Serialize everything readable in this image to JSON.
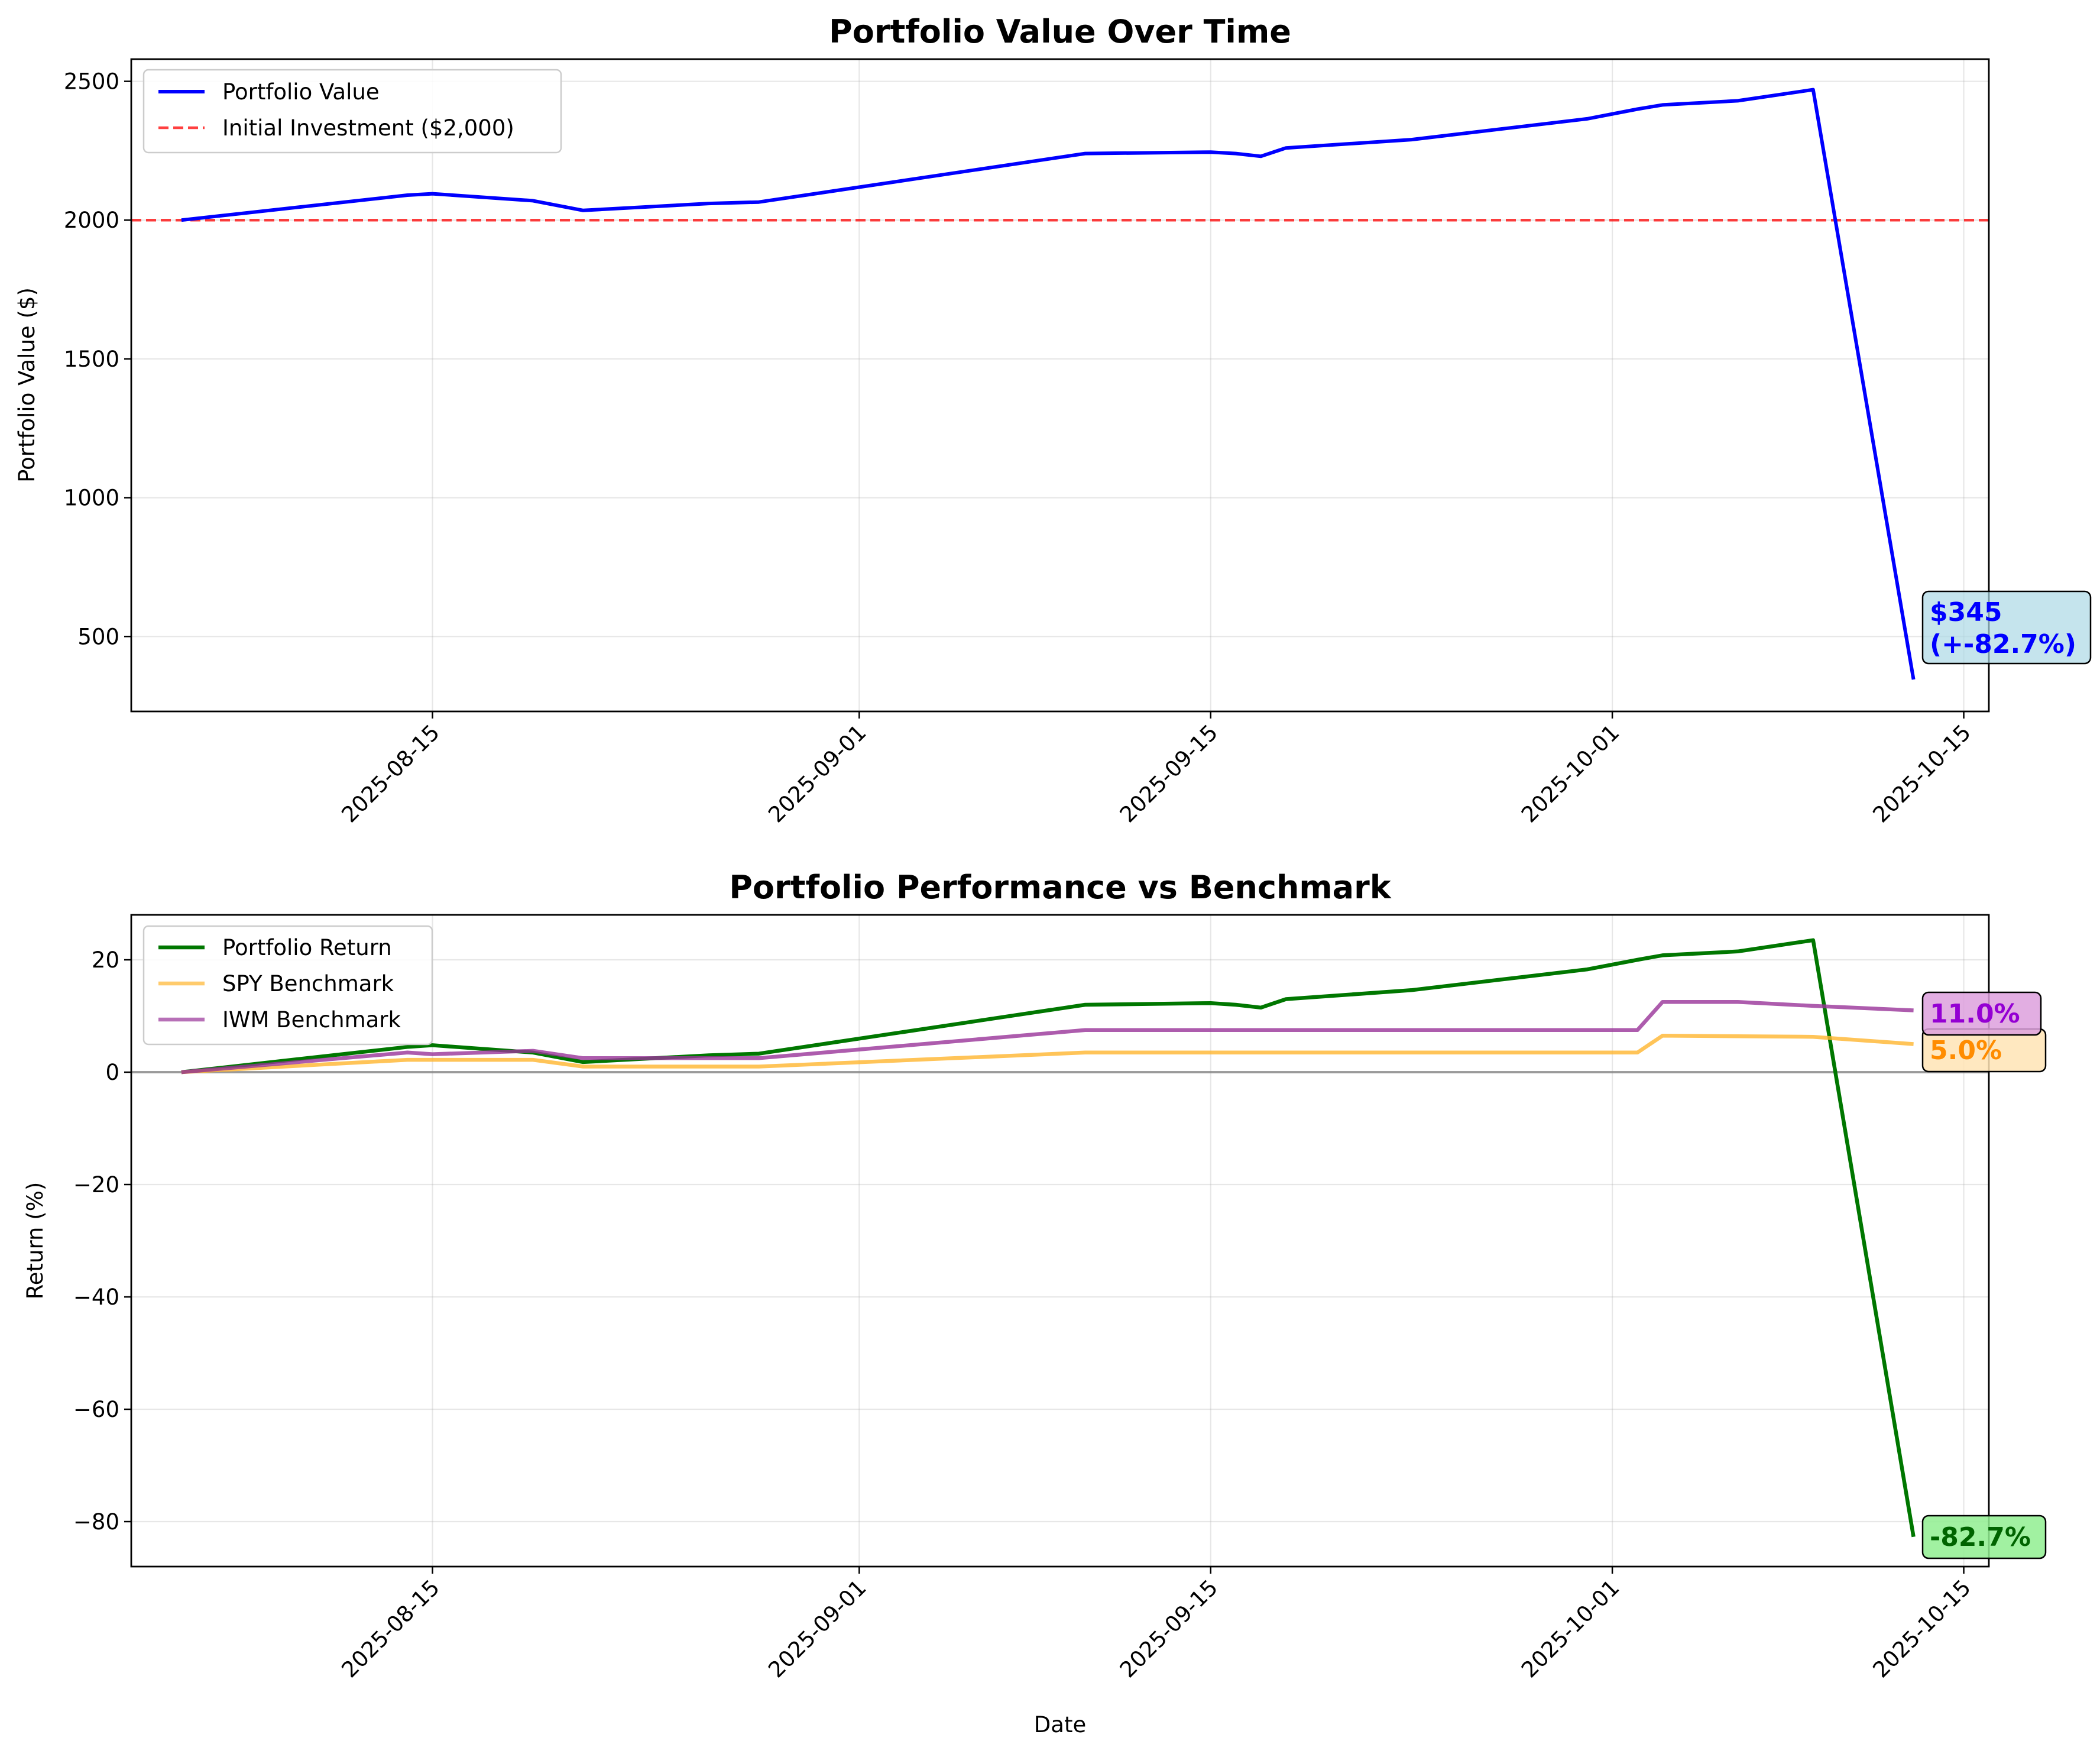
{
  "colors": {
    "portfolio_value": "#0000ff",
    "initial_line": "#ff0000",
    "portfolio_return": "#007700",
    "spy": "#ffb52e",
    "iwm": "#993399",
    "zero_line": "#808080"
  },
  "chart_data": [
    {
      "type": "line",
      "title": "Portfolio Value Over Time",
      "xlabel": "",
      "ylabel": "Portfolio Value ($)",
      "x_type": "date",
      "xlim": [
        "2025-08-03",
        "2025-10-16"
      ],
      "ylim": [
        230,
        2580
      ],
      "xticks": [
        "2025-08-15",
        "2025-09-01",
        "2025-09-15",
        "2025-10-01",
        "2025-10-15"
      ],
      "yticks": [
        500,
        1000,
        1500,
        2000,
        2500
      ],
      "grid": true,
      "legend_loc": "upper left",
      "series": [
        {
          "name": "Portfolio Value",
          "style": "solid",
          "points": [
            [
              "2025-08-05",
              2000
            ],
            [
              "2025-08-14",
              2090
            ],
            [
              "2025-08-15",
              2095
            ],
            [
              "2025-08-19",
              2070
            ],
            [
              "2025-08-21",
              2035
            ],
            [
              "2025-08-26",
              2060
            ],
            [
              "2025-08-28",
              2065
            ],
            [
              "2025-09-10",
              2240
            ],
            [
              "2025-09-15",
              2245
            ],
            [
              "2025-09-16",
              2240
            ],
            [
              "2025-09-17",
              2230
            ],
            [
              "2025-09-18",
              2260
            ],
            [
              "2025-09-23",
              2290
            ],
            [
              "2025-09-30",
              2365
            ],
            [
              "2025-10-02",
              2400
            ],
            [
              "2025-10-03",
              2415
            ],
            [
              "2025-10-06",
              2430
            ],
            [
              "2025-10-09",
              2470
            ],
            [
              "2025-10-13",
              345
            ]
          ]
        },
        {
          "name": "Initial Investment ($2,000)",
          "style": "dashed",
          "hline": 2000
        }
      ],
      "annotations": [
        {
          "text_line1": "$345",
          "text_line2": "(+-82.7%)",
          "x": "2025-10-13",
          "y": 345
        }
      ]
    },
    {
      "type": "line",
      "title": "Portfolio Performance vs Benchmark",
      "xlabel": "Date",
      "ylabel": "Return (%)",
      "x_type": "date",
      "xlim": [
        "2025-08-03",
        "2025-10-16"
      ],
      "ylim": [
        -88,
        28
      ],
      "xticks": [
        "2025-08-15",
        "2025-09-01",
        "2025-09-15",
        "2025-10-01",
        "2025-10-15"
      ],
      "yticks": [
        20,
        0,
        -20,
        -40,
        -60,
        -80
      ],
      "grid": true,
      "legend_loc": "upper left",
      "series": [
        {
          "name": "Portfolio Return",
          "points": [
            [
              "2025-08-05",
              0
            ],
            [
              "2025-08-14",
              4.5
            ],
            [
              "2025-08-15",
              4.8
            ],
            [
              "2025-08-19",
              3.5
            ],
            [
              "2025-08-21",
              1.8
            ],
            [
              "2025-08-26",
              3.0
            ],
            [
              "2025-08-28",
              3.3
            ],
            [
              "2025-09-10",
              12.0
            ],
            [
              "2025-09-15",
              12.3
            ],
            [
              "2025-09-16",
              12.0
            ],
            [
              "2025-09-17",
              11.5
            ],
            [
              "2025-09-18",
              13.0
            ],
            [
              "2025-09-23",
              14.6
            ],
            [
              "2025-09-30",
              18.3
            ],
            [
              "2025-10-02",
              20.0
            ],
            [
              "2025-10-03",
              20.8
            ],
            [
              "2025-10-06",
              21.5
            ],
            [
              "2025-10-09",
              23.5
            ],
            [
              "2025-10-13",
              -82.7
            ]
          ]
        },
        {
          "name": "SPY Benchmark",
          "points": [
            [
              "2025-08-05",
              0
            ],
            [
              "2025-08-14",
              2.2
            ],
            [
              "2025-08-15",
              2.2
            ],
            [
              "2025-08-19",
              2.2
            ],
            [
              "2025-08-21",
              1.0
            ],
            [
              "2025-08-26",
              1.0
            ],
            [
              "2025-08-28",
              1.0
            ],
            [
              "2025-09-10",
              3.5
            ],
            [
              "2025-09-15",
              3.5
            ],
            [
              "2025-09-30",
              3.5
            ],
            [
              "2025-10-02",
              3.5
            ],
            [
              "2025-10-03",
              6.5
            ],
            [
              "2025-10-06",
              6.4
            ],
            [
              "2025-10-09",
              6.3
            ],
            [
              "2025-10-13",
              5.0
            ]
          ]
        },
        {
          "name": "IWM Benchmark",
          "points": [
            [
              "2025-08-05",
              0
            ],
            [
              "2025-08-14",
              3.5
            ],
            [
              "2025-08-15",
              3.2
            ],
            [
              "2025-08-19",
              3.8
            ],
            [
              "2025-08-21",
              2.5
            ],
            [
              "2025-08-26",
              2.5
            ],
            [
              "2025-08-28",
              2.5
            ],
            [
              "2025-09-10",
              7.5
            ],
            [
              "2025-09-15",
              7.5
            ],
            [
              "2025-09-30",
              7.5
            ],
            [
              "2025-10-02",
              7.5
            ],
            [
              "2025-10-03",
              12.5
            ],
            [
              "2025-10-06",
              12.5
            ],
            [
              "2025-10-09",
              11.8
            ],
            [
              "2025-10-13",
              11.0
            ]
          ]
        }
      ],
      "hline": 0,
      "annotations": [
        {
          "text": "11.0%",
          "series": "IWM Benchmark",
          "x": "2025-10-13",
          "y": 11.0
        },
        {
          "text": "5.0%",
          "series": "SPY Benchmark",
          "x": "2025-10-13",
          "y": 5.0
        },
        {
          "text": "-82.7%",
          "series": "Portfolio Return",
          "x": "2025-10-13",
          "y": -82.7
        }
      ]
    }
  ]
}
